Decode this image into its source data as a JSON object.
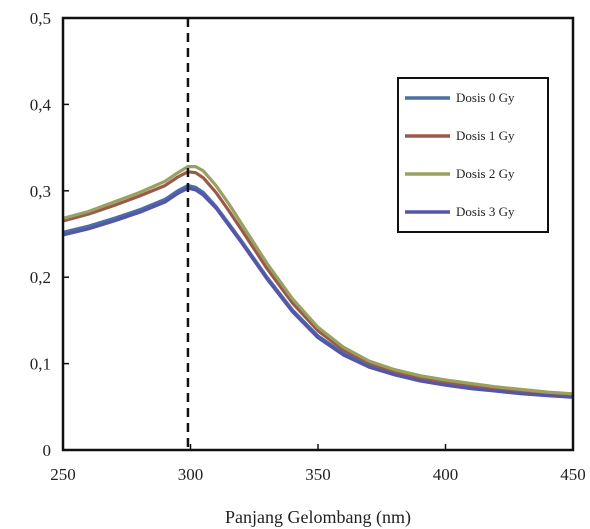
{
  "chart_data": {
    "type": "line",
    "title": "",
    "xlabel": "Panjang Gelombang (nm)",
    "ylabel": "",
    "xlim": [
      250,
      450
    ],
    "ylim": [
      0,
      0.5
    ],
    "x_ticks": [
      "250",
      "300",
      "350",
      "400",
      "450"
    ],
    "y_ticks": [
      "0",
      "0,1",
      "0,2",
      "0,3",
      "0,4",
      "0,5"
    ],
    "grid": false,
    "legend_position": "top-right",
    "reference_line": {
      "x": 299,
      "style": "dashed",
      "color": "#111111"
    },
    "x": [
      250,
      260,
      270,
      280,
      290,
      295,
      299,
      302,
      305,
      310,
      315,
      320,
      330,
      340,
      350,
      360,
      370,
      380,
      390,
      400,
      410,
      420,
      430,
      440,
      450
    ],
    "series": [
      {
        "name": "Dosis 0 Gy",
        "color": "#4a6fa5",
        "values": [
          0.252,
          0.259,
          0.268,
          0.278,
          0.29,
          0.3,
          0.306,
          0.304,
          0.298,
          0.282,
          0.262,
          0.242,
          0.2,
          0.162,
          0.132,
          0.112,
          0.098,
          0.089,
          0.082,
          0.077,
          0.073,
          0.07,
          0.067,
          0.065,
          0.063
        ]
      },
      {
        "name": "Dosis 1 Gy",
        "color": "#9a5a4a",
        "values": [
          0.265,
          0.273,
          0.283,
          0.294,
          0.306,
          0.316,
          0.322,
          0.321,
          0.315,
          0.298,
          0.277,
          0.255,
          0.21,
          0.17,
          0.138,
          0.116,
          0.101,
          0.091,
          0.084,
          0.079,
          0.075,
          0.071,
          0.068,
          0.066,
          0.064
        ]
      },
      {
        "name": "Dosis 2 Gy",
        "color": "#9aa060",
        "values": [
          0.268,
          0.276,
          0.287,
          0.298,
          0.311,
          0.321,
          0.328,
          0.328,
          0.323,
          0.306,
          0.285,
          0.262,
          0.216,
          0.175,
          0.142,
          0.119,
          0.103,
          0.093,
          0.086,
          0.081,
          0.077,
          0.073,
          0.07,
          0.067,
          0.065
        ]
      },
      {
        "name": "Dosis 3 Gy",
        "color": "#5555aa",
        "values": [
          0.249,
          0.256,
          0.265,
          0.275,
          0.287,
          0.297,
          0.303,
          0.301,
          0.295,
          0.28,
          0.26,
          0.24,
          0.198,
          0.16,
          0.13,
          0.11,
          0.096,
          0.087,
          0.08,
          0.075,
          0.071,
          0.068,
          0.065,
          0.063,
          0.061
        ]
      }
    ]
  }
}
